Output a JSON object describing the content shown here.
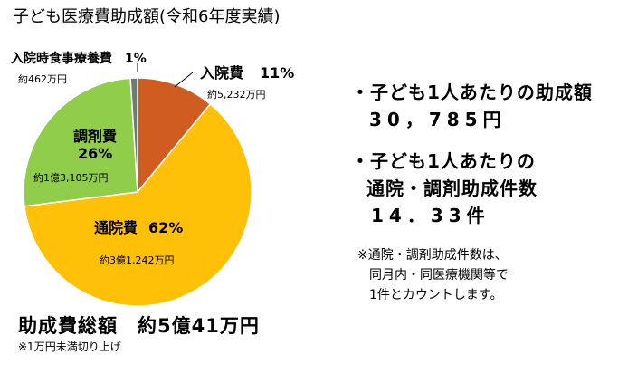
{
  "title": "子ども医療費助成額(令和6年度実績)",
  "chart_data": {
    "type": "pie",
    "title": "子ども医療費助成額(令和6年度実績)",
    "slices": [
      {
        "name": "入院費",
        "percent_label": "11%",
        "percent": 11,
        "amount_label": "約5,232万円",
        "color": "#d15c1f"
      },
      {
        "name": "通院費",
        "percent_label": "62%",
        "percent": 62,
        "amount_label": "約3億1,242万円",
        "color": "#fec108"
      },
      {
        "name": "調剤費",
        "percent_label": "26%",
        "percent": 26,
        "amount_label": "約1億3,105万円",
        "color": "#8fcd4a"
      },
      {
        "name": "入院時食事療養費",
        "percent_label": "1%",
        "percent": 1,
        "amount_label": "約462万円",
        "color": "#6b7c72"
      }
    ]
  },
  "total": {
    "label": "助成費総額　約5億41万円",
    "note": "※1万円未満切り上げ"
  },
  "stats": {
    "per_child_title": "・子ども1人あたりの助成額",
    "per_child_value": "30，785円",
    "cases_title_1": "・子ども1人あたりの",
    "cases_title_2": "通院・調剤助成件数",
    "cases_value": "14．33件"
  },
  "footnote": {
    "line1": "※通院・調剤助成件数は、",
    "line2": "同月内・同医療機関等で",
    "line3": "1件とカウントします。"
  }
}
